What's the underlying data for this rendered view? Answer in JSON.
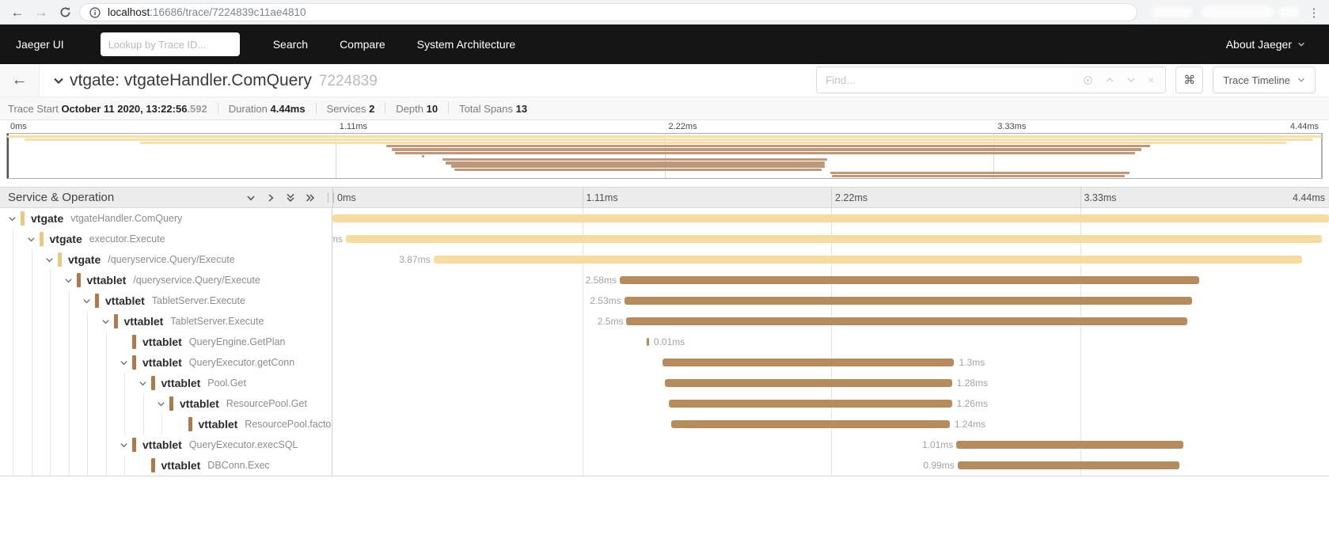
{
  "browser": {
    "url_host": "localhost",
    "url_rest": ":16686/trace/7224839c11ae4810",
    "icons": {
      "back": "←",
      "forward": "→",
      "kebab": "⋮"
    }
  },
  "navbar": {
    "brand": "Jaeger UI",
    "lookup_placeholder": "Lookup by Trace ID...",
    "items": [
      "Search",
      "Compare",
      "System Architecture"
    ],
    "about_label": "About Jaeger"
  },
  "trace_header": {
    "title": "vtgate: vtgateHandler.ComQuery",
    "trace_id_short": "7224839",
    "find_placeholder": "Find...",
    "shortcut_glyph": "⌘",
    "clear_glyph": "×",
    "view_selector_label": "Trace Timeline"
  },
  "trace_meta": {
    "items": [
      {
        "label": "Trace Start",
        "value": "October 11 2020, 13:22:56",
        "suffix": ".592"
      },
      {
        "label": "Duration",
        "value": "4.44ms",
        "suffix": ""
      },
      {
        "label": "Services",
        "value": "2",
        "suffix": ""
      },
      {
        "label": "Depth",
        "value": "10",
        "suffix": ""
      },
      {
        "label": "Total Spans",
        "value": "13",
        "suffix": ""
      }
    ]
  },
  "timeline": {
    "section_header": "Service & Operation",
    "total_ms": 4.44,
    "ticks": [
      "0ms",
      "1.11ms",
      "2.22ms",
      "3.33ms",
      "4.44ms"
    ],
    "services": {
      "vtgate": {
        "bar": "#F7DCA2",
        "swatch": "#E9C97F",
        "mini": "#F6E0A9"
      },
      "vttablet": {
        "bar": "#B68B5E",
        "swatch": "#AC7A4C",
        "mini": "#BE987A"
      }
    },
    "spans": [
      {
        "service": "vtgate",
        "operation": "vtgateHandler.ComQuery",
        "depth": 0,
        "has_children": true,
        "start_ms": 0.0,
        "duration_ms": 4.44,
        "label": "",
        "label_side": "none"
      },
      {
        "service": "vtgate",
        "operation": "executor.Execute",
        "depth": 1,
        "has_children": true,
        "start_ms": 0.06,
        "duration_ms": 4.35,
        "label": "ms",
        "label_side": "left"
      },
      {
        "service": "vtgate",
        "operation": "/queryservice.Query/Execute",
        "depth": 2,
        "has_children": true,
        "start_ms": 0.45,
        "duration_ms": 3.87,
        "label": "3.87ms",
        "label_side": "left"
      },
      {
        "service": "vttablet",
        "operation": "/queryservice.Query/Execute",
        "depth": 3,
        "has_children": true,
        "start_ms": 1.28,
        "duration_ms": 2.58,
        "label": "2.58ms",
        "label_side": "left"
      },
      {
        "service": "vttablet",
        "operation": "TabletServer.Execute",
        "depth": 4,
        "has_children": true,
        "start_ms": 1.3,
        "duration_ms": 2.53,
        "label": "2.53ms",
        "label_side": "left"
      },
      {
        "service": "vttablet",
        "operation": "TabletServer.Execute",
        "depth": 5,
        "has_children": true,
        "start_ms": 1.31,
        "duration_ms": 2.5,
        "label": "2.5ms",
        "label_side": "left"
      },
      {
        "service": "vttablet",
        "operation": "QueryEngine.GetPlan",
        "depth": 6,
        "has_children": false,
        "start_ms": 1.4,
        "duration_ms": 0.01,
        "label": "0.01ms",
        "label_side": "right"
      },
      {
        "service": "vttablet",
        "operation": "QueryExecutor.getConn",
        "depth": 6,
        "has_children": true,
        "start_ms": 1.47,
        "duration_ms": 1.3,
        "label": "1.3ms",
        "label_side": "right"
      },
      {
        "service": "vttablet",
        "operation": "Pool.Get",
        "depth": 7,
        "has_children": true,
        "start_ms": 1.48,
        "duration_ms": 1.28,
        "label": "1.28ms",
        "label_side": "right"
      },
      {
        "service": "vttablet",
        "operation": "ResourcePool.Get",
        "depth": 8,
        "has_children": true,
        "start_ms": 1.5,
        "duration_ms": 1.26,
        "label": "1.26ms",
        "label_side": "right"
      },
      {
        "service": "vttablet",
        "operation": "ResourcePool.factory",
        "depth": 9,
        "has_children": false,
        "start_ms": 1.51,
        "duration_ms": 1.24,
        "label": "1.24ms",
        "label_side": "right"
      },
      {
        "service": "vttablet",
        "operation": "QueryExecutor.execSQL",
        "depth": 6,
        "has_children": true,
        "start_ms": 2.78,
        "duration_ms": 1.01,
        "label": "1.01ms",
        "label_side": "left"
      },
      {
        "service": "vttablet",
        "operation": "DBConn.Exec",
        "depth": 7,
        "has_children": false,
        "start_ms": 2.785,
        "duration_ms": 0.99,
        "label": "0.99ms",
        "label_side": "left"
      }
    ]
  }
}
